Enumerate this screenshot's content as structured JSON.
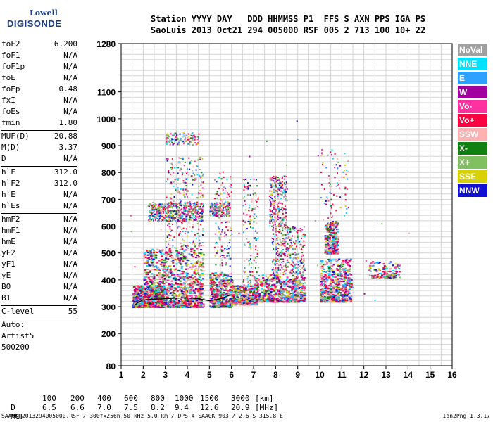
{
  "logo": {
    "line1": "Lowell",
    "line2": "DIGISONDE"
  },
  "header": {
    "line1": "Station YYYY DAY   DDD HHMMSS P1  FFS S AXN PPS IGA PS",
    "line2": "SaoLuis 2013 Oct21 294 005000 RSF 005 2 713 100 10+ 22"
  },
  "params": {
    "group1": [
      {
        "k": "foF2",
        "v": "6.200"
      },
      {
        "k": "foF1",
        "v": "N/A"
      },
      {
        "k": "foF1p",
        "v": "N/A"
      },
      {
        "k": "foE",
        "v": "N/A"
      },
      {
        "k": "foEp",
        "v": "0.48"
      },
      {
        "k": "fxI",
        "v": "N/A"
      },
      {
        "k": "foEs",
        "v": "N/A"
      },
      {
        "k": "fmin",
        "v": "1.80"
      }
    ],
    "group2": [
      {
        "k": "MUF(D)",
        "v": "20.88"
      },
      {
        "k": "M(D)",
        "v": "3.37"
      },
      {
        "k": "D",
        "v": "N/A"
      }
    ],
    "group3": [
      {
        "k": "h`F",
        "v": "312.0"
      },
      {
        "k": "h`F2",
        "v": "312.0"
      },
      {
        "k": "h`E",
        "v": "N/A"
      },
      {
        "k": "h`Es",
        "v": "N/A"
      }
    ],
    "group4": [
      {
        "k": "hmF2",
        "v": "N/A"
      },
      {
        "k": "hmF1",
        "v": "N/A"
      },
      {
        "k": "hmE",
        "v": "N/A"
      },
      {
        "k": "yF2",
        "v": "N/A"
      },
      {
        "k": "yF1",
        "v": "N/A"
      },
      {
        "k": "yE",
        "v": "N/A"
      },
      {
        "k": "B0",
        "v": "N/A"
      },
      {
        "k": "B1",
        "v": "N/A"
      }
    ],
    "clevel": {
      "k": "C-level",
      "v": "55"
    },
    "auto": [
      "Auto:",
      "Artist5",
      "500200"
    ]
  },
  "mufline": {
    "dlabel": "D",
    "dvalues": [
      "100",
      "200",
      "400",
      "600",
      "800",
      "1000",
      "1500",
      "3000"
    ],
    "dunit": "[km]",
    "mlabel": "MUF",
    "mvalues": [
      "6.5",
      "6.6",
      "7.0",
      "7.5",
      "8.2",
      "9.4",
      "12.6",
      "20.9"
    ],
    "munit": "[MHz]"
  },
  "bottom": {
    "left": "SAA0K_2013294005000.RSF / 300fx256h 50 kHz 5.0 km / DPS-4 SAA0K 903 / 2.6 S 315.8 E",
    "right": "Ion2Png 1.3.17"
  },
  "colors": {
    "NoVal": "#a0a0a0",
    "NNE": "#00e0ff",
    "E": "#2ea0ff",
    "W": "#a000a0",
    "Vo-": "#ff30a0",
    "Vo+": "#ff0040",
    "SSW": "#ffb0b0",
    "X-": "#108010",
    "X+": "#80c060",
    "SSE": "#d8d000",
    "NNW": "#1010d0"
  },
  "chart_data": {
    "type": "scatter",
    "x_ticks": [
      1,
      2,
      3,
      4,
      5,
      6,
      7,
      8,
      9,
      10,
      11,
      12,
      13,
      14,
      15,
      16
    ],
    "y_ticks": [
      80,
      200,
      300,
      400,
      500,
      600,
      700,
      800,
      900,
      1000,
      1100,
      1280
    ],
    "xlim": [
      1,
      16
    ],
    "ylim": [
      80,
      1280
    ],
    "grid": true,
    "legend": [
      "NoVal",
      "NNE",
      "E",
      "W",
      "Vo-",
      "Vo+",
      "SSW",
      "X-",
      "X+",
      "SSE",
      "NNW"
    ],
    "legend_position": "right",
    "trace": {
      "x": [
        1.6,
        1.8,
        2.0,
        2.5,
        3.0,
        3.5,
        4.0,
        4.5,
        5.0,
        5.5,
        6.0
      ],
      "y": [
        305,
        318,
        325,
        328,
        330,
        332,
        333,
        330,
        322,
        330,
        345
      ]
    },
    "clusters": [
      {
        "xmin": 1.5,
        "xmax": 3.0,
        "ymin": 300,
        "ymax": 380,
        "n": 900,
        "spread": "dense"
      },
      {
        "xmin": 2.0,
        "xmax": 4.7,
        "ymin": 300,
        "ymax": 520,
        "n": 1200,
        "spread": "dense"
      },
      {
        "xmin": 2.2,
        "xmax": 4.7,
        "ymin": 620,
        "ymax": 690,
        "n": 500,
        "spread": "band"
      },
      {
        "xmin": 3.0,
        "xmax": 4.7,
        "ymin": 520,
        "ymax": 860,
        "n": 300,
        "spread": "sparse"
      },
      {
        "xmin": 3.0,
        "xmax": 4.5,
        "ymin": 905,
        "ymax": 950,
        "n": 120,
        "spread": "band"
      },
      {
        "xmin": 5.0,
        "xmax": 6.0,
        "ymin": 300,
        "ymax": 430,
        "n": 500,
        "spread": "dense"
      },
      {
        "xmin": 5.0,
        "xmax": 5.9,
        "ymin": 640,
        "ymax": 690,
        "n": 160,
        "spread": "band"
      },
      {
        "xmin": 5.2,
        "xmax": 6.0,
        "ymin": 450,
        "ymax": 800,
        "n": 140,
        "spread": "sparse"
      },
      {
        "xmin": 6.0,
        "xmax": 7.1,
        "ymin": 310,
        "ymax": 380,
        "n": 450,
        "spread": "dense"
      },
      {
        "xmin": 6.5,
        "xmax": 7.2,
        "ymin": 380,
        "ymax": 780,
        "n": 150,
        "spread": "sparse"
      },
      {
        "xmin": 7.0,
        "xmax": 9.3,
        "ymin": 320,
        "ymax": 420,
        "n": 700,
        "spread": "dense"
      },
      {
        "xmin": 7.8,
        "xmax": 9.3,
        "ymin": 420,
        "ymax": 600,
        "n": 350,
        "spread": "sparse"
      },
      {
        "xmin": 7.7,
        "xmax": 8.5,
        "ymin": 600,
        "ymax": 790,
        "n": 260,
        "spread": "sparse"
      },
      {
        "xmin": 10.0,
        "xmax": 11.4,
        "ymin": 320,
        "ymax": 480,
        "n": 600,
        "spread": "dense"
      },
      {
        "xmin": 10.2,
        "xmax": 10.8,
        "ymin": 500,
        "ymax": 620,
        "n": 250,
        "spread": "dense"
      },
      {
        "xmin": 10.0,
        "xmax": 11.3,
        "ymin": 620,
        "ymax": 890,
        "n": 90,
        "spread": "sparse"
      },
      {
        "xmin": 12.2,
        "xmax": 13.6,
        "ymin": 410,
        "ymax": 470,
        "n": 140,
        "spread": "dense"
      }
    ]
  }
}
